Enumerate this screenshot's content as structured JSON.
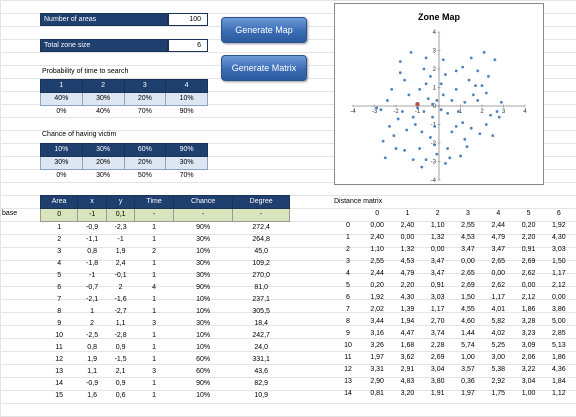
{
  "controls": {
    "num_areas_label": "Number of areas",
    "num_areas_value": "100",
    "zone_size_label": "Total zone size",
    "zone_size_value": "6",
    "btn_generate_map": "Generate Map",
    "btn_generate_matrix": "Generate Matrix"
  },
  "prob_search": {
    "title": "Probability of time to search",
    "headers": [
      "1",
      "2",
      "3",
      "4"
    ],
    "row1": [
      "40%",
      "30%",
      "20%",
      "10%"
    ],
    "row2": [
      "0%",
      "40%",
      "70%",
      "90%"
    ]
  },
  "chance_victim": {
    "title": "Chance of having victim",
    "row1": [
      "10%",
      "30%",
      "60%",
      "90%"
    ],
    "row2": [
      "30%",
      "20%",
      "20%",
      "30%"
    ],
    "row3": [
      "0%",
      "30%",
      "50%",
      "70%"
    ]
  },
  "areas": {
    "headers": [
      "Area",
      "x",
      "y",
      "Time",
      "Chance",
      "Degree"
    ],
    "base_label": "base",
    "base_row": [
      "0",
      "-1",
      "0,1",
      "-",
      "-",
      "-"
    ],
    "rows": [
      [
        "1",
        "-0,9",
        "-2,3",
        "1",
        "90%",
        "272,4"
      ],
      [
        "2",
        "-1,1",
        "-1",
        "1",
        "30%",
        "264,8"
      ],
      [
        "3",
        "0,8",
        "1,9",
        "2",
        "10%",
        "45,0"
      ],
      [
        "4",
        "-1,8",
        "2,4",
        "1",
        "30%",
        "109,2"
      ],
      [
        "5",
        "-1",
        "-0,1",
        "1",
        "30%",
        "270,0"
      ],
      [
        "6",
        "-0,7",
        "2",
        "4",
        "90%",
        "81,0"
      ],
      [
        "7",
        "-2,1",
        "-1,6",
        "1",
        "10%",
        "237,1"
      ],
      [
        "8",
        "1",
        "-2,7",
        "1",
        "10%",
        "305,5"
      ],
      [
        "9",
        "2",
        "1,1",
        "3",
        "30%",
        "18,4"
      ],
      [
        "10",
        "-2,5",
        "-2,8",
        "1",
        "10%",
        "242,7"
      ],
      [
        "11",
        "0,8",
        "0,9",
        "1",
        "10%",
        "24,0"
      ],
      [
        "12",
        "1,9",
        "-1,5",
        "1",
        "60%",
        "331,1"
      ],
      [
        "13",
        "1,1",
        "2,1",
        "3",
        "60%",
        "43,6"
      ],
      [
        "14",
        "-0,9",
        "0,9",
        "1",
        "90%",
        "82,9"
      ],
      [
        "15",
        "1,6",
        "0,6",
        "1",
        "10%",
        "10,9"
      ]
    ]
  },
  "chart_data": {
    "type": "scatter",
    "title": "Zone Map",
    "xlim": [
      -4,
      4
    ],
    "ylim": [
      -4,
      4
    ],
    "xticks": [
      "-4",
      "-3",
      "-2",
      "-1",
      "0",
      "1",
      "2",
      "3",
      "4"
    ],
    "yticks": [
      "4",
      "3",
      "2",
      "1",
      "0",
      "-1",
      "-2",
      "-3",
      "-4"
    ],
    "points": [
      [
        -0.9,
        -2.3
      ],
      [
        -1.1,
        -1
      ],
      [
        0.8,
        1.9
      ],
      [
        -1.8,
        2.4
      ],
      [
        -1,
        -0.1
      ],
      [
        -0.7,
        2
      ],
      [
        -2.1,
        -1.6
      ],
      [
        1,
        -2.7
      ],
      [
        2,
        1.1
      ],
      [
        -2.5,
        -2.8
      ],
      [
        0.8,
        0.9
      ],
      [
        1.9,
        -1.5
      ],
      [
        1.1,
        2.1
      ],
      [
        -0.9,
        0.9
      ],
      [
        1.6,
        0.6
      ],
      [
        -1.3,
        2.9
      ],
      [
        -1.6,
        1.4
      ],
      [
        -0.4,
        1.6
      ],
      [
        -0.6,
        2.6
      ],
      [
        0.2,
        2.5
      ],
      [
        2.1,
        2.9
      ],
      [
        2.6,
        2.5
      ],
      [
        1.4,
        1.4
      ],
      [
        1.7,
        1.1
      ],
      [
        2.3,
        1.6
      ],
      [
        1.8,
        0.3
      ],
      [
        2.4,
        -0.5
      ],
      [
        2.7,
        -0.3
      ],
      [
        2.2,
        -1
      ],
      [
        1.2,
        -1.8
      ],
      [
        0.4,
        -2.3
      ],
      [
        0.6,
        -1.4
      ],
      [
        -0.2,
        -1.1
      ],
      [
        -0.3,
        -0.6
      ],
      [
        0.1,
        -0.2
      ],
      [
        -0.4,
        -1.7
      ],
      [
        -0.2,
        -2.1
      ],
      [
        -0.6,
        -2.9
      ],
      [
        -0.1,
        -2.6
      ],
      [
        0.3,
        -3.1
      ],
      [
        -1.9,
        -0.7
      ],
      [
        -1.7,
        -0.3
      ],
      [
        -2.4,
        0.3
      ],
      [
        -2.7,
        -0.2
      ],
      [
        -2.9,
        -0.1
      ],
      [
        -2.3,
        -1.1
      ],
      [
        -1.6,
        -2.4
      ],
      [
        -1.2,
        -2.9
      ],
      [
        -0.8,
        -3.3
      ],
      [
        -2.2,
        0.9
      ],
      [
        -0.7,
        -0.3
      ],
      [
        -0.5,
        0.4
      ],
      [
        -0.3,
        0.1
      ],
      [
        0.2,
        0.6
      ],
      [
        0.4,
        -0.4
      ],
      [
        1.2,
        0.2
      ],
      [
        1.1,
        -0.9
      ],
      [
        0.9,
        -0.3
      ],
      [
        2.9,
        0.2
      ],
      [
        2.8,
        -0.6
      ],
      [
        -1.4,
        0.6
      ],
      [
        -1.2,
        -0.6
      ],
      [
        1.5,
        -1.2
      ],
      [
        0.5,
        -2.8
      ],
      [
        1.3,
        -2.2
      ],
      [
        2.5,
        -1.6
      ],
      [
        -2.6,
        -1.9
      ],
      [
        -1.5,
        -1.3
      ],
      [
        0.1,
        1.2
      ],
      [
        0.6,
        0.3
      ],
      [
        -0.1,
        0.3
      ],
      [
        2.2,
        0.7
      ],
      [
        1.5,
        2.6
      ],
      [
        -0.6,
        1.2
      ],
      [
        0.3,
        1.7
      ],
      [
        -1.8,
        1.8
      ],
      [
        1.8,
        1.9
      ],
      [
        -2.0,
        -2.3
      ],
      [
        0.8,
        -1.1
      ],
      [
        -0.8,
        -1.4
      ]
    ],
    "base_point": [
      -1,
      0.1
    ],
    "point_color": "#4f81bd",
    "base_color": "#c0504d"
  },
  "distance_matrix": {
    "title": "Distance matrix",
    "cols": [
      "0",
      "1",
      "2",
      "3",
      "4",
      "5",
      "6"
    ],
    "rows": [
      [
        "0",
        "0,00",
        "2,40",
        "1,10",
        "2,55",
        "2,44",
        "0,20",
        "1,92"
      ],
      [
        "1",
        "2,40",
        "0,00",
        "1,32",
        "4,53",
        "4,79",
        "2,20",
        "4,30"
      ],
      [
        "2",
        "1,10",
        "1,32",
        "0,00",
        "3,47",
        "3,47",
        "0,91",
        "3,03"
      ],
      [
        "3",
        "2,55",
        "4,53",
        "3,47",
        "0,00",
        "2,65",
        "2,69",
        "1,50"
      ],
      [
        "4",
        "2,44",
        "4,79",
        "3,47",
        "2,65",
        "0,00",
        "2,62",
        "1,17"
      ],
      [
        "5",
        "0,20",
        "2,20",
        "0,91",
        "2,69",
        "2,62",
        "0,00",
        "2,12"
      ],
      [
        "6",
        "1,92",
        "4,30",
        "3,03",
        "1,50",
        "1,17",
        "2,12",
        "0,00"
      ],
      [
        "7",
        "2,02",
        "1,39",
        "1,17",
        "4,55",
        "4,01",
        "1,86",
        "3,86"
      ],
      [
        "8",
        "3,44",
        "1,94",
        "2,70",
        "4,60",
        "5,82",
        "3,28",
        "5,00"
      ],
      [
        "9",
        "3,16",
        "4,47",
        "3,74",
        "1,44",
        "4,02",
        "3,23",
        "2,85"
      ],
      [
        "10",
        "3,26",
        "1,68",
        "2,28",
        "5,74",
        "5,25",
        "3,09",
        "5,13"
      ],
      [
        "11",
        "1,97",
        "3,62",
        "2,69",
        "1,00",
        "3,00",
        "2,06",
        "1,86"
      ],
      [
        "12",
        "3,31",
        "2,91",
        "3,04",
        "3,57",
        "5,38",
        "3,22",
        "4,36"
      ],
      [
        "13",
        "2,90",
        "4,83",
        "3,80",
        "0,36",
        "2,92",
        "3,04",
        "1,84"
      ],
      [
        "14",
        "0,81",
        "3,20",
        "1,91",
        "1,97",
        "1,75",
        "1,00",
        "1,12"
      ]
    ]
  }
}
